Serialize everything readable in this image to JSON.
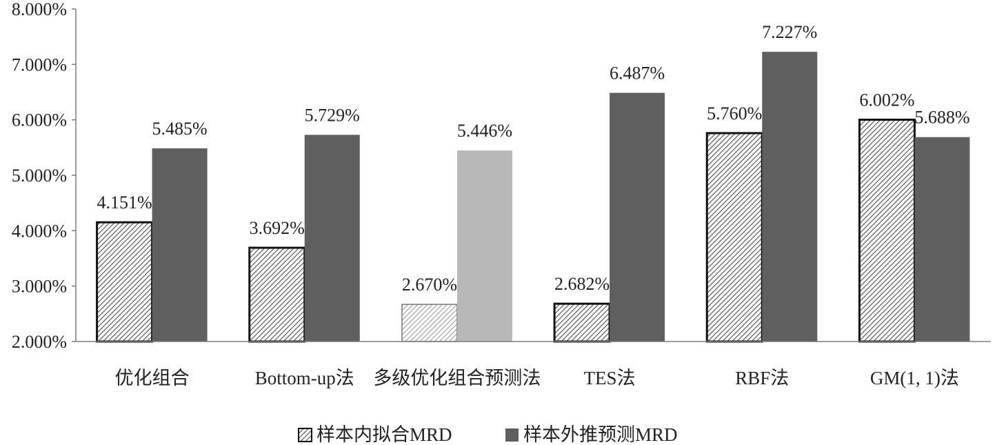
{
  "chart_data": {
    "type": "bar",
    "categories": [
      "优化组合",
      "Bottom-up法",
      "多级优化组合预测法",
      "TES法",
      "RBF法",
      "GM(1, 1)法"
    ],
    "series": [
      {
        "name": "样本内拟合MRD",
        "values": [
          4.151,
          3.692,
          2.67,
          2.682,
          5.76,
          6.002
        ],
        "labels": [
          "4.151%",
          "3.692%",
          "2.670%",
          "2.682%",
          "5.760%",
          "6.002%"
        ],
        "pattern": "hatch",
        "color": "#ffffff"
      },
      {
        "name": "样本外推预测MRD",
        "values": [
          5.485,
          5.729,
          5.446,
          6.487,
          7.227,
          5.688
        ],
        "labels": [
          "5.485%",
          "5.729%",
          "5.446%",
          "6.487%",
          "7.227%",
          "5.688%"
        ],
        "color": "#5f5f5f",
        "highlight_color": "#b8b8b8",
        "highlight_index": 2
      }
    ],
    "ylim": [
      2,
      8
    ],
    "yticks": [
      2,
      3,
      4,
      5,
      6,
      7,
      8
    ],
    "ytick_labels": [
      "2.000%",
      "3.000%",
      "4.000%",
      "5.000%",
      "6.000%",
      "7.000%",
      "8.000%"
    ],
    "grid": false,
    "legend_position": "bottom-center",
    "title": "",
    "xlabel": "",
    "ylabel": ""
  }
}
